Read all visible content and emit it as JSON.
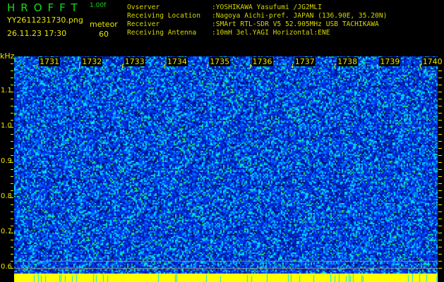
{
  "header": {
    "app_title": "HROFFT",
    "version": "1.00f",
    "filename": "YY2611231730.png",
    "datetime": "26.11.23 17:30",
    "mode": "meteor",
    "count": "60"
  },
  "info": [
    {
      "key": "Ovserver",
      "value": ":YOSHIKAWA Yasufumi /JG2MLI"
    },
    {
      "key": "Receiving Location",
      "value": ":Nagoya Aichi-pref. JAPAN (136.90E, 35.20N)"
    },
    {
      "key": "Receiver",
      "value": ":SMArt RTL-SDR V5 52.905MHz USB TACHIKAWA"
    },
    {
      "key": "Receiving Antenna",
      "value": ":10mH 3el.YAGI Horizontal:ENE"
    }
  ],
  "chart_data": {
    "type": "heatmap",
    "ylabel": "kHz",
    "ylim": [
      0.584,
      1.2
    ],
    "yticks": [
      "1.1",
      "1.0",
      "0.9",
      "0.8",
      "0.7",
      "0.6"
    ],
    "time_labels": [
      "1731",
      "1732",
      "1733",
      "1734",
      "1735",
      "1736",
      "1737",
      "1738",
      "1739",
      "1740"
    ],
    "colors": {
      "background_noise": [
        "#001070",
        "#0020c0",
        "#0040ff",
        "#0080ff",
        "#00e0ff",
        "#20d060"
      ],
      "strong": "#ffff00",
      "axis_text": "#e8e800",
      "title": "#18d818"
    }
  }
}
